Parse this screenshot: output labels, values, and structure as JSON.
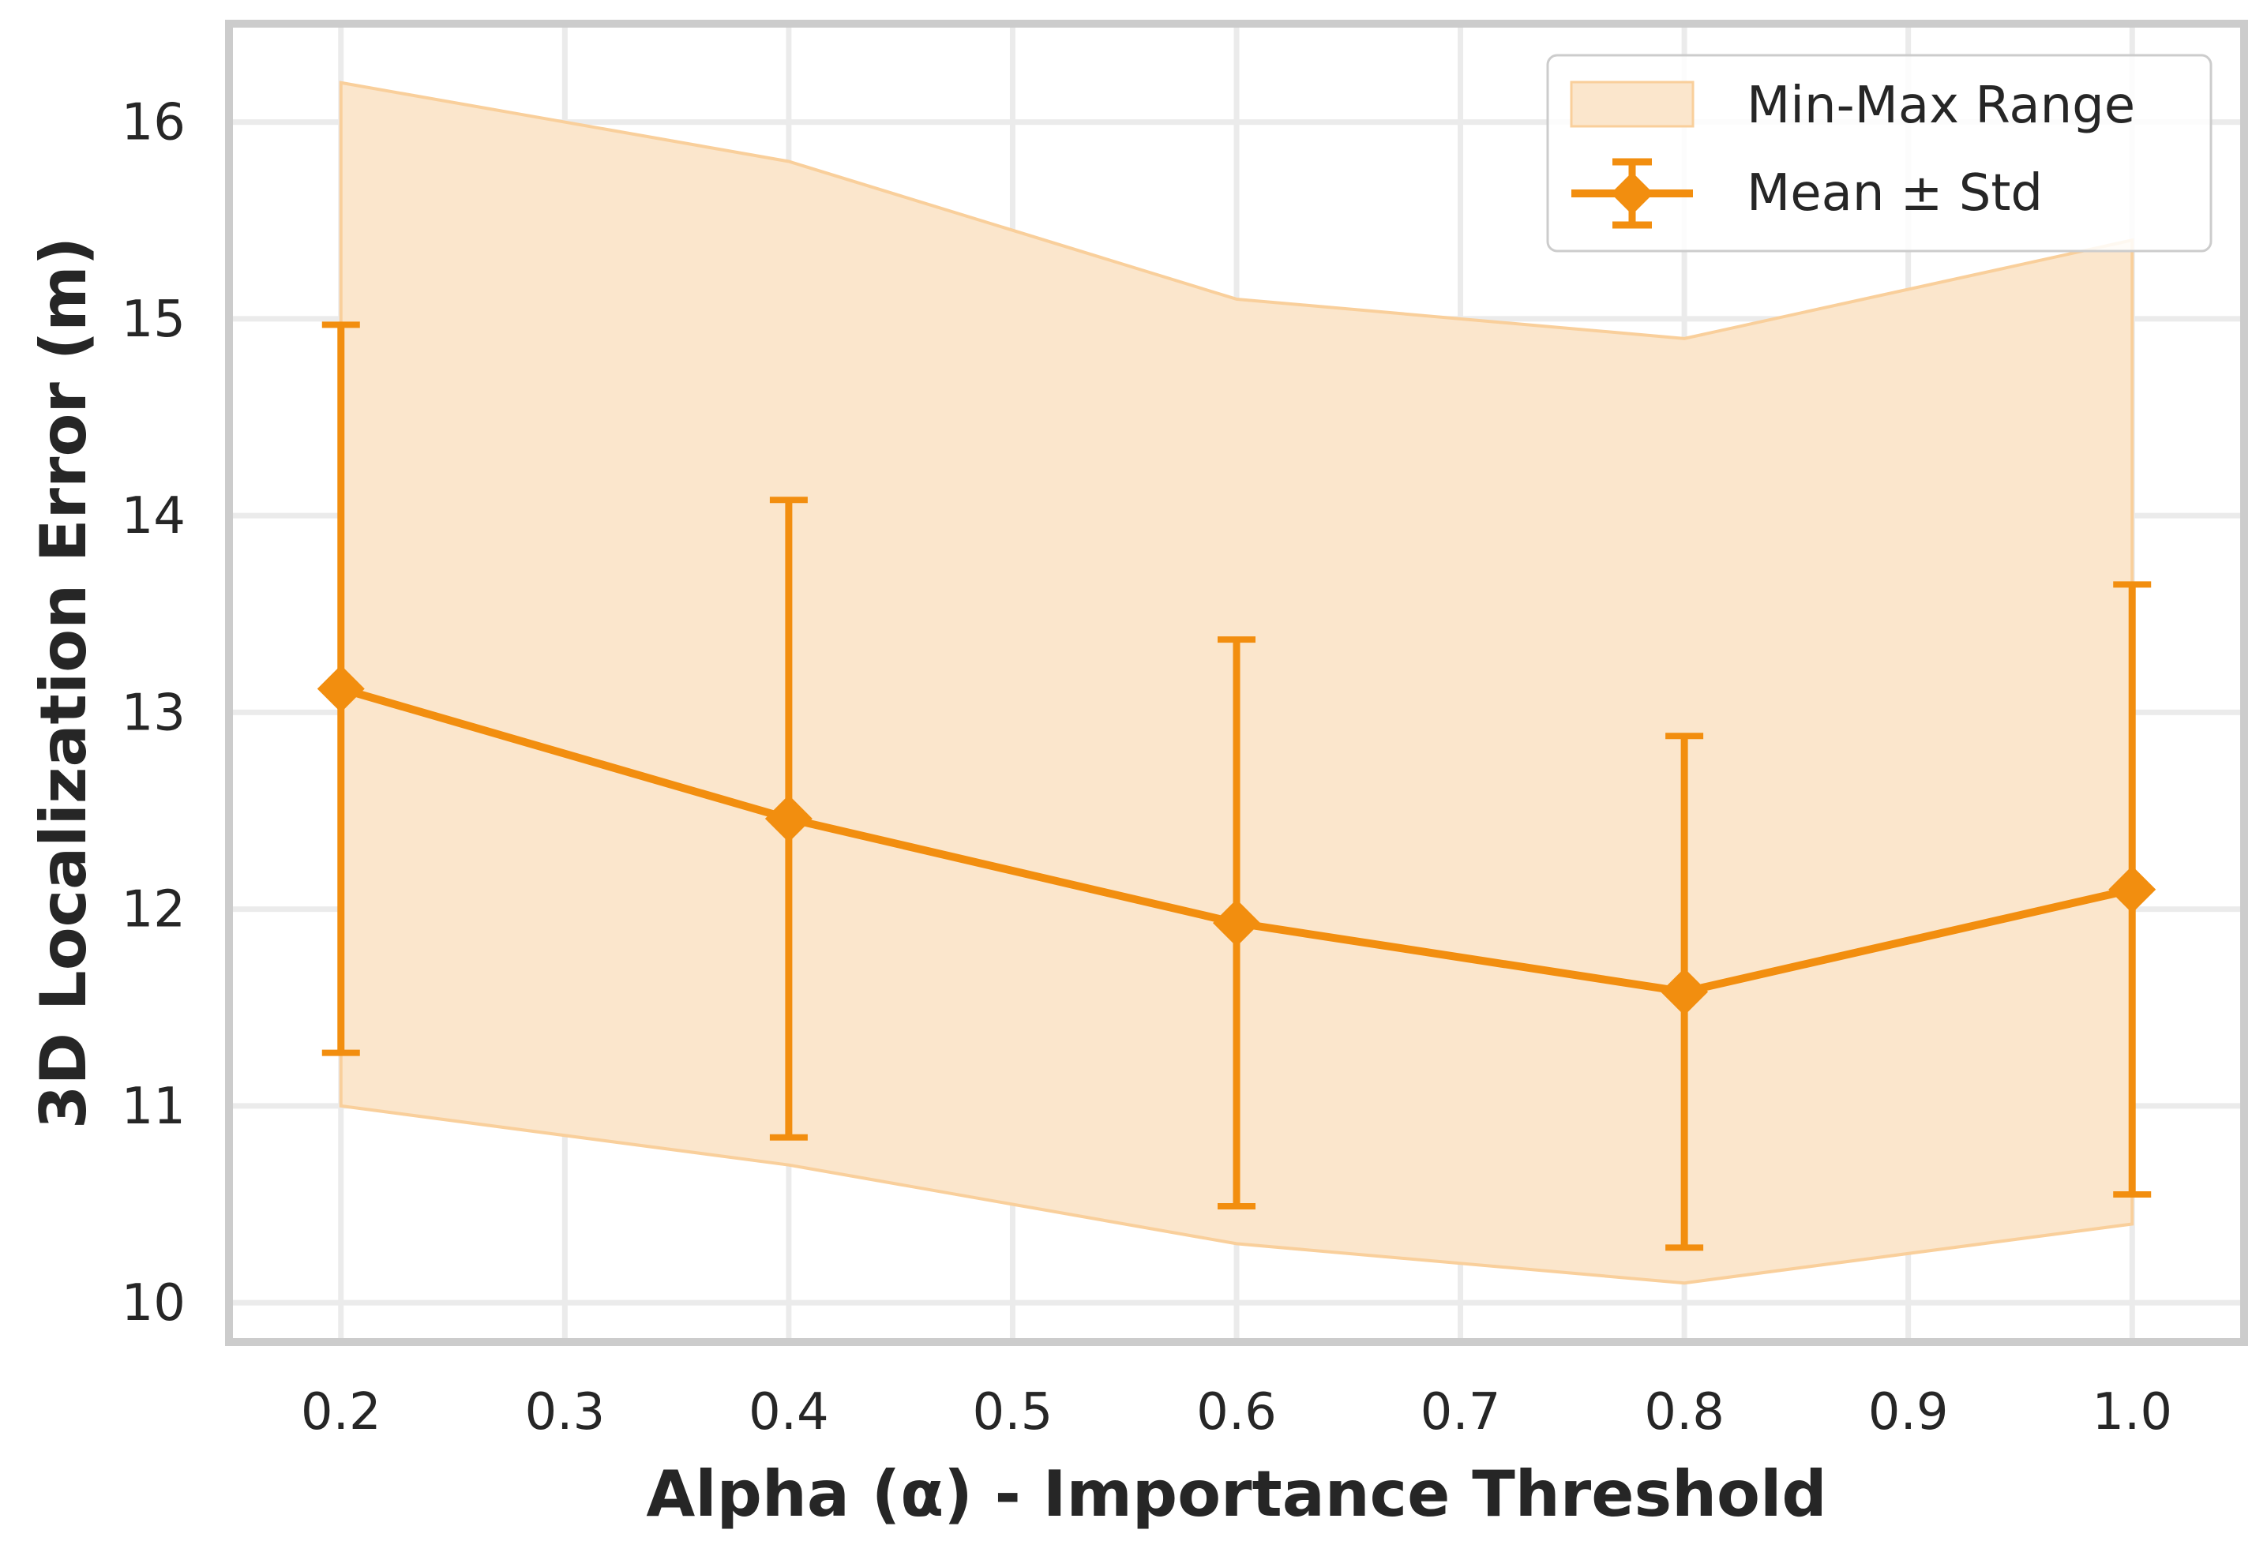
{
  "chart_data": {
    "type": "line",
    "title": "",
    "xlabel": "Alpha (α) - Importance Threshold",
    "ylabel": "3D Localization Error (m)",
    "xlim": [
      0.15,
      1.05
    ],
    "ylim": [
      9.8,
      16.5
    ],
    "grid": true,
    "x": [
      0.2,
      0.4,
      0.6,
      0.8,
      1.0
    ],
    "x_ticks": [
      0.2,
      0.3,
      0.4,
      0.5,
      0.6,
      0.7,
      0.8,
      0.9,
      1.0
    ],
    "x_tick_labels": [
      "0.2",
      "0.3",
      "0.4",
      "0.5",
      "0.6",
      "0.7",
      "0.8",
      "0.9",
      "1.0"
    ],
    "y_ticks": [
      10,
      11,
      12,
      13,
      14,
      15,
      16
    ],
    "y_tick_labels": [
      "10",
      "11",
      "12",
      "13",
      "14",
      "15",
      "16"
    ],
    "series": [
      {
        "name": "Mean ± Std",
        "type": "line-errorbar",
        "marker": "diamond",
        "values": [
          13.12,
          12.46,
          11.93,
          11.58,
          12.1
        ],
        "std": [
          1.85,
          1.62,
          1.44,
          1.3,
          1.55
        ]
      },
      {
        "name": "Min-Max Range",
        "type": "band",
        "min": [
          11.0,
          10.7,
          10.3,
          10.1,
          10.4
        ],
        "max": [
          16.2,
          15.8,
          15.1,
          14.9,
          15.4
        ]
      }
    ],
    "legend": {
      "position": "top-right",
      "entries": [
        "Min-Max Range",
        "Mean ± Std"
      ]
    },
    "colors": {
      "line": "#f28e0f",
      "band": "#fbe6cc",
      "band_edge": "#f9cf9b",
      "grid": "#ebebeb",
      "frame": "#cccccc",
      "text": "#262626"
    }
  }
}
